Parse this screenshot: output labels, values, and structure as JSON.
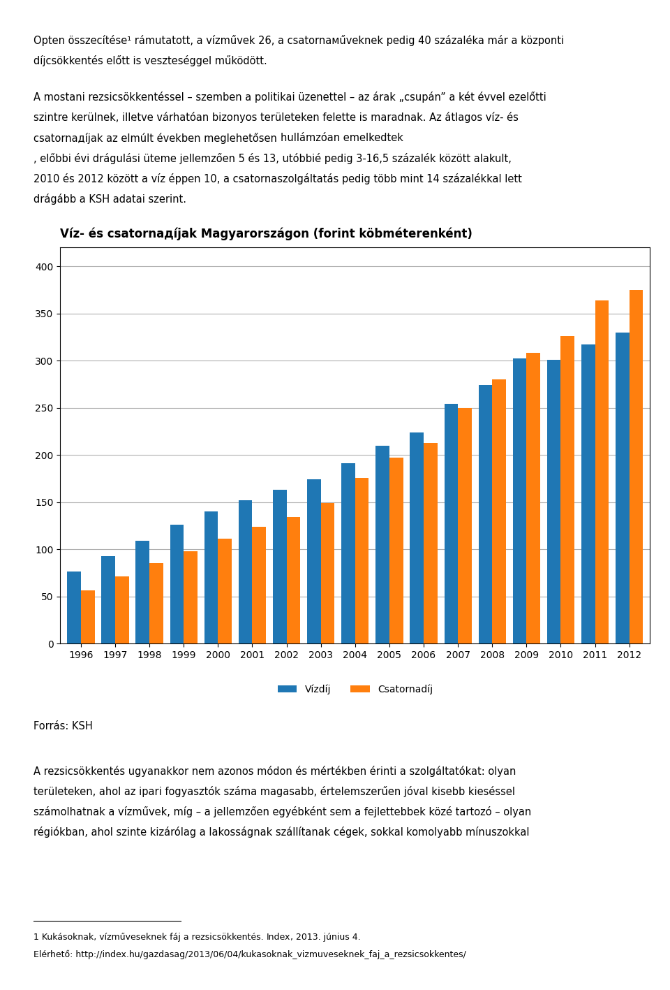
{
  "chart_data": {
    "type": "bar",
    "title": "Víz- és csatornадíjak Magyarországon (forint köbméterenként)",
    "categories": [
      "1996",
      "1997",
      "1998",
      "1999",
      "2000",
      "2001",
      "2002",
      "2003",
      "2004",
      "2005",
      "2006",
      "2007",
      "2008",
      "2009",
      "2010",
      "2011",
      "2012"
    ],
    "series": [
      {
        "name": "Vízdíj",
        "values": [
          76,
          93,
          109,
          126,
          140,
          152,
          163,
          174,
          191,
          210,
          224,
          254,
          274,
          302,
          301,
          317,
          330
        ]
      },
      {
        "name": "Csatornadíj",
        "values": [
          56,
          71,
          85,
          98,
          111,
          124,
          134,
          149,
          176,
          197,
          213,
          250,
          280,
          308,
          326,
          364,
          375
        ]
      }
    ],
    "ylim": [
      0,
      420
    ],
    "yticks": [
      0,
      50,
      100,
      150,
      200,
      250,
      300,
      350,
      400
    ],
    "grid": true,
    "legend": "lower center",
    "annotations": [
      [
        [
          "Opten összесítése¹ rámutatott, a vízművek 26, a csatornамűveknek pedig 40 százaléka már a központi"
        ],
        [
          "díjcsökkentés előtt is veszteséggel működött."
        ]
      ],
      [
        [
          "A mostani rezsicsökkentéssel – szemben a politikai üzenettel – az árak „csupán” a két évvel ezelőtti"
        ],
        [
          "szintre kerülnek, illetve várhatóan bizonyos területeken felette is maradnak. Az átlagos víz- és"
        ],
        [
          "csatornадíjak az elmúlt években meglehetősen ",
          "hullámzóan emelkedtek"
        ],
        [
          ", előbbi évi drágulási üteme jellemzően 5 és 13, utóbbié pedig 3-16,5 százalék között alakult,"
        ],
        [
          "2010 és 2012 között a víz éppen 10, a csatornaszolgáltatás pedig több mint 14 százalékkal lett"
        ],
        [
          "drágább a KSH adatai szerint."
        ]
      ],
      [
        [
          "Forrás: KSH"
        ]
      ],
      [
        [
          "A rezsicsökkentés ugyanakkor nem azonos módon és mértékben érinti a szolgáltatókat: olyan"
        ],
        [
          "területeken, ahol az ipari fogyasztók száma magasabb, értelemszerűen jóval kisebb kieséssel"
        ],
        [
          "számolhatnak a vízművek, míg – a jellemzően egyébként sem a fejlettebbek közé tartozó – olyan"
        ],
        [
          "régiókban, ahol szinte kizárólag a lakosságnak szállítanak cégek, sokkal ",
          "komolyabb mínuszokkal"
        ]
      ],
      [
        [
          "1 Kukásoknak, vízműveseknek fáj a rezsicsökkentés. ",
          "Index",
          ", 2013. június 4."
        ],
        [
          "Elérhető: http://index.hu/gazdasag/2013/06/04/kukasoknak_vizmuveseknek_faj_a_rezsicsokkentes/"
        ]
      ]
    ]
  }
}
